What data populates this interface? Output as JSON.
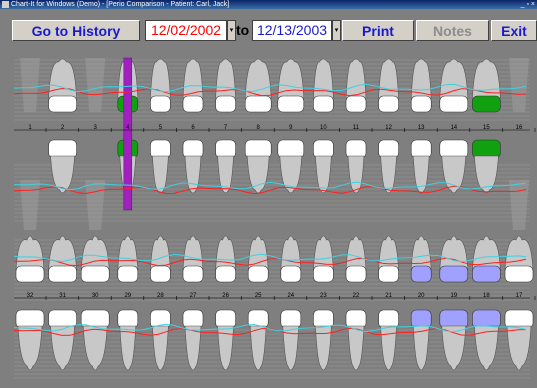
{
  "window": {
    "title": "Chart-It for Windows (Demo) - [Perio Comparison - Patient: Carl, Jack]",
    "buttons": "_ ▫ ×"
  },
  "toolbar": {
    "history_label": "Go to History",
    "start_date": "12/02/2002",
    "to_label": "to",
    "end_date": "12/13/2003",
    "print_label": "Print",
    "notes_label": "Notes",
    "exit_label": "Exit",
    "start_date_color": "#ff0000",
    "end_date_color": "#1a1acc"
  },
  "upper_numbers": [
    "1",
    "2",
    "3",
    "4",
    "5",
    "6",
    "7",
    "8",
    "9",
    "10",
    "11",
    "12",
    "13",
    "14",
    "15",
    "16"
  ],
  "lower_numbers": [
    "32",
    "31",
    "30",
    "29",
    "28",
    "27",
    "26",
    "25",
    "24",
    "23",
    "22",
    "21",
    "20",
    "19",
    "18",
    "17"
  ],
  "colors": {
    "implant": "#a020c0",
    "restoration": "#10a010",
    "crown": "#a0a0ff",
    "line_a": "#ff2020",
    "line_b": "#40d0e0"
  }
}
